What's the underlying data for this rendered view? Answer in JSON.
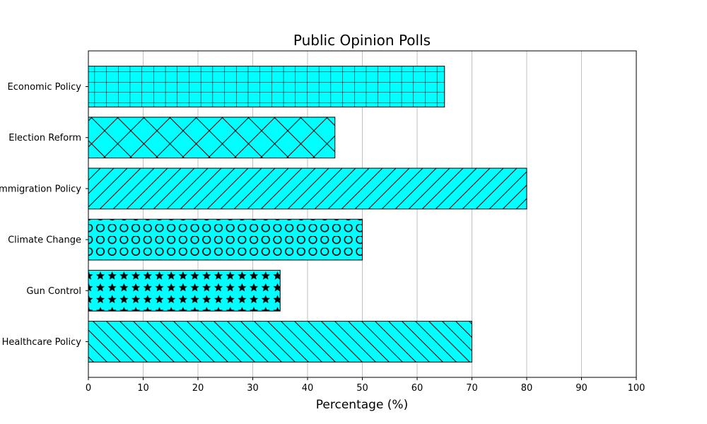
{
  "chart_data": {
    "type": "bar",
    "orientation": "horizontal",
    "title": "Public Opinion Polls",
    "xlabel": "Percentage (%)",
    "ylabel": "",
    "categories": [
      "Healthcare Policy",
      "Gun Control",
      "Climate Change",
      "Immigration Policy",
      "Election Reform",
      "Economic Policy"
    ],
    "values": [
      70,
      35,
      50,
      80,
      45,
      65
    ],
    "hatches": [
      "diagonal-back",
      "stars",
      "circles",
      "diagonal-forward",
      "crosshatch",
      "grid"
    ],
    "xlim": [
      0,
      100
    ],
    "xticks": [
      0,
      10,
      20,
      30,
      40,
      50,
      60,
      70,
      80,
      90,
      100
    ],
    "grid": "x",
    "bar_color": "#00ffff",
    "edge_color": "#000000"
  }
}
